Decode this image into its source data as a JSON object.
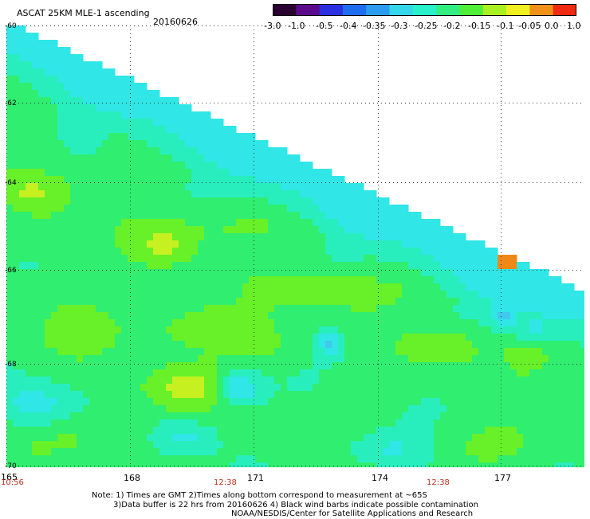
{
  "header": {
    "title": "ASCAT 25KM MLE-1 ascending",
    "date": "20160626"
  },
  "colorbar": {
    "labels": [
      "-3.0",
      "-1.0",
      "-0.5",
      "-0.4",
      "-0.35",
      "-0.3",
      "-0.25",
      "-0.2",
      "-0.15",
      "-0.1",
      "-0.05",
      "0.0",
      "1.0"
    ],
    "colors": [
      "#2a0030",
      "#5a0a8a",
      "#2a30e0",
      "#1e6cf0",
      "#2a9cf0",
      "#33d6ea",
      "#28f0c8",
      "#30ee80",
      "#50ee38",
      "#a8f020",
      "#f0f020",
      "#f09018",
      "#f02a10"
    ]
  },
  "axes": {
    "lat_labels": [
      "-60",
      "-62",
      "-64",
      "-66",
      "-68",
      "-70"
    ],
    "lon_labels": [
      "165",
      "168",
      "171",
      "174",
      "177"
    ]
  },
  "times": [
    "10:56",
    "12:38",
    "12:38"
  ],
  "note": {
    "line1": "Note: 1) Times are GMT 2)Times along bottom correspond to measurement at ~65S",
    "line2": "3)Data buffer is 22 hrs from 20160626 4) Black wind barbs indicate possible contamination",
    "line3": "NOAA/NESDIS/Center for Satellite Applications and Research"
  },
  "colors": {
    "deep_blue": "#1e5ef0",
    "blue": "#3aa6ee",
    "light_blue": "#40c8ee",
    "cyan": "#30e6e6",
    "aqua": "#28eebe",
    "green": "#30ee70",
    "lime": "#68f028",
    "yellow_green": "#c6f020",
    "orange": "#f08818"
  }
}
